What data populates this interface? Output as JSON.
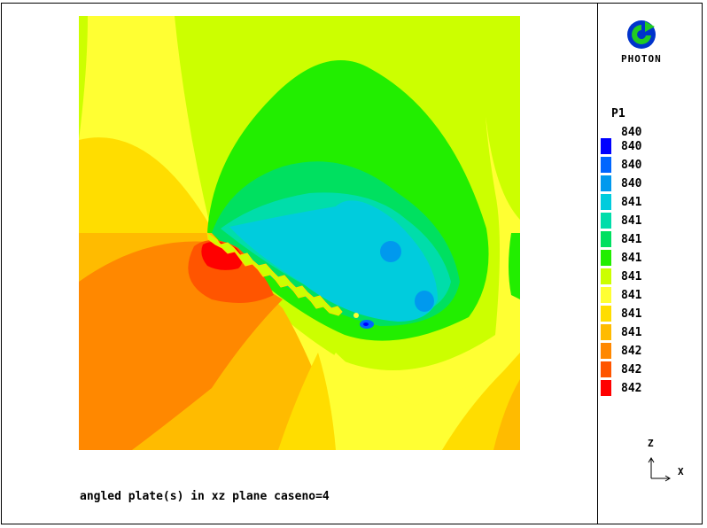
{
  "app": {
    "logo_text": "PHOTON",
    "caption": "angled plate(s) in xz plane caseno=4"
  },
  "legend": {
    "variable": "P1",
    "top_label": "840",
    "items": [
      {
        "label": "840",
        "color": "#0000ff"
      },
      {
        "label": "840",
        "color": "#0066ff"
      },
      {
        "label": "840",
        "color": "#0099ee"
      },
      {
        "label": "841",
        "color": "#00ccdd"
      },
      {
        "label": "841",
        "color": "#00ddaa"
      },
      {
        "label": "841",
        "color": "#00e060"
      },
      {
        "label": "841",
        "color": "#22ee00"
      },
      {
        "label": "841",
        "color": "#ccff00"
      },
      {
        "label": "841",
        "color": "#ffff33"
      },
      {
        "label": "841",
        "color": "#ffdd00"
      },
      {
        "label": "841",
        "color": "#ffbb00"
      },
      {
        "label": "842",
        "color": "#ff8800"
      },
      {
        "label": "842",
        "color": "#ff5500"
      },
      {
        "label": "842",
        "color": "#ff0000"
      }
    ]
  },
  "axes": {
    "vertical": "Z",
    "horizontal": "X"
  }
}
